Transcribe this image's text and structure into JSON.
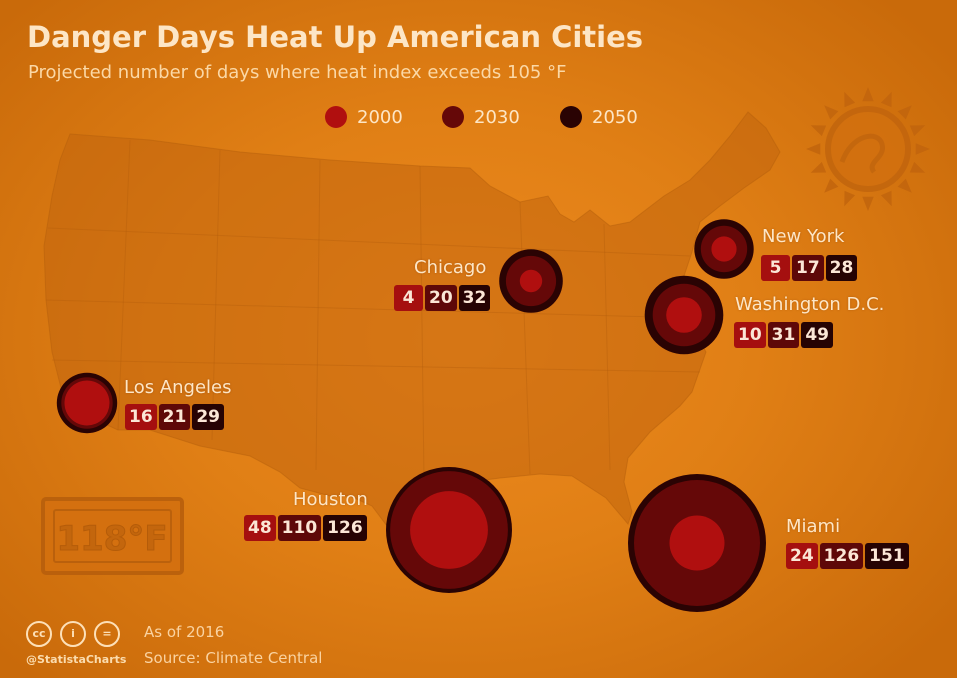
{
  "title": "Danger Days Heat Up American Cities",
  "subtitle": "Projected number of days where heat index exceeds 105 °F",
  "legend": [
    {
      "label": "2000",
      "color": "#b00f0f"
    },
    {
      "label": "2030",
      "color": "#650808"
    },
    {
      "label": "2050",
      "color": "#2a0303"
    }
  ],
  "cities": [
    {
      "name": "New York",
      "values": [
        "5",
        "17",
        "28"
      ]
    },
    {
      "name": "Chicago",
      "values": [
        "4",
        "20",
        "32"
      ]
    },
    {
      "name": "Washington D.C.",
      "values": [
        "10",
        "31",
        "49"
      ]
    },
    {
      "name": "Los Angeles",
      "values": [
        "16",
        "21",
        "29"
      ]
    },
    {
      "name": "Houston",
      "values": [
        "48",
        "110",
        "126"
      ]
    },
    {
      "name": "Miami",
      "values": [
        "24",
        "126",
        "151"
      ]
    }
  ],
  "thermometer": "118°F",
  "footer": {
    "as_of": "As of 2016",
    "source": "Source: Climate Central",
    "brand": "@StatistaCharts",
    "icons": [
      "creative-commons-icon",
      "attribution-icon",
      "no-derivatives-icon"
    ]
  }
}
